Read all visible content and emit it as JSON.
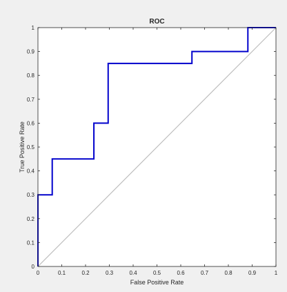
{
  "chart_data": {
    "type": "line",
    "title": "ROC",
    "xlabel": "False Positive Rate",
    "ylabel": "True Positive Rate",
    "xlim": [
      0,
      1
    ],
    "ylim": [
      0,
      1
    ],
    "xticks": [
      "0",
      "0.1",
      "0.2",
      "0.3",
      "0.4",
      "0.5",
      "0.6",
      "0.7",
      "0.8",
      "0.9",
      "1"
    ],
    "yticks": [
      "0",
      "0.1",
      "0.2",
      "0.3",
      "0.4",
      "0.5",
      "0.6",
      "0.7",
      "0.8",
      "0.9",
      "1"
    ],
    "grid": false,
    "series": [
      {
        "kind": "roc-curve",
        "color": "#0000cc",
        "x": [
          0,
          0,
          0.06,
          0.06,
          0.235,
          0.235,
          0.295,
          0.295,
          0.647,
          0.647,
          0.882,
          0.882,
          1
        ],
        "y": [
          0,
          0.3,
          0.3,
          0.45,
          0.45,
          0.6,
          0.6,
          0.85,
          0.85,
          0.9,
          0.9,
          1,
          1
        ]
      },
      {
        "kind": "diagonal-reference",
        "color": "#bdbdbd",
        "x": [
          0,
          1
        ],
        "y": [
          0,
          1
        ]
      }
    ]
  }
}
